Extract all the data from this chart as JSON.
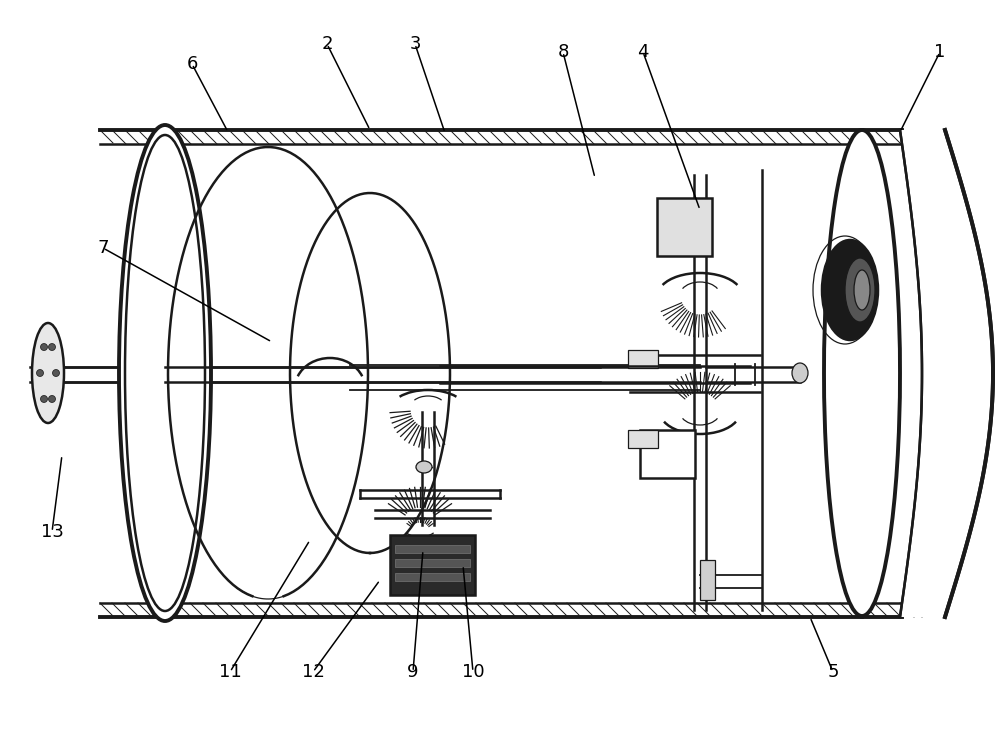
{
  "background_color": "#ffffff",
  "line_color": "#1a1a1a",
  "figsize": [
    10.0,
    7.46
  ],
  "dpi": 100,
  "labels": {
    "1": [
      940,
      52,
      900,
      132
    ],
    "2": [
      327,
      44,
      370,
      130
    ],
    "3": [
      415,
      44,
      445,
      133
    ],
    "4": [
      643,
      52,
      700,
      210
    ],
    "5": [
      833,
      672,
      810,
      617
    ],
    "6": [
      192,
      64,
      228,
      132
    ],
    "7": [
      103,
      248,
      272,
      342
    ],
    "8": [
      563,
      52,
      595,
      178
    ],
    "9": [
      413,
      672,
      423,
      550
    ],
    "10": [
      473,
      672,
      463,
      565
    ],
    "11": [
      230,
      672,
      310,
      540
    ],
    "12": [
      313,
      672,
      380,
      580
    ],
    "13": [
      52,
      532,
      62,
      455
    ]
  }
}
